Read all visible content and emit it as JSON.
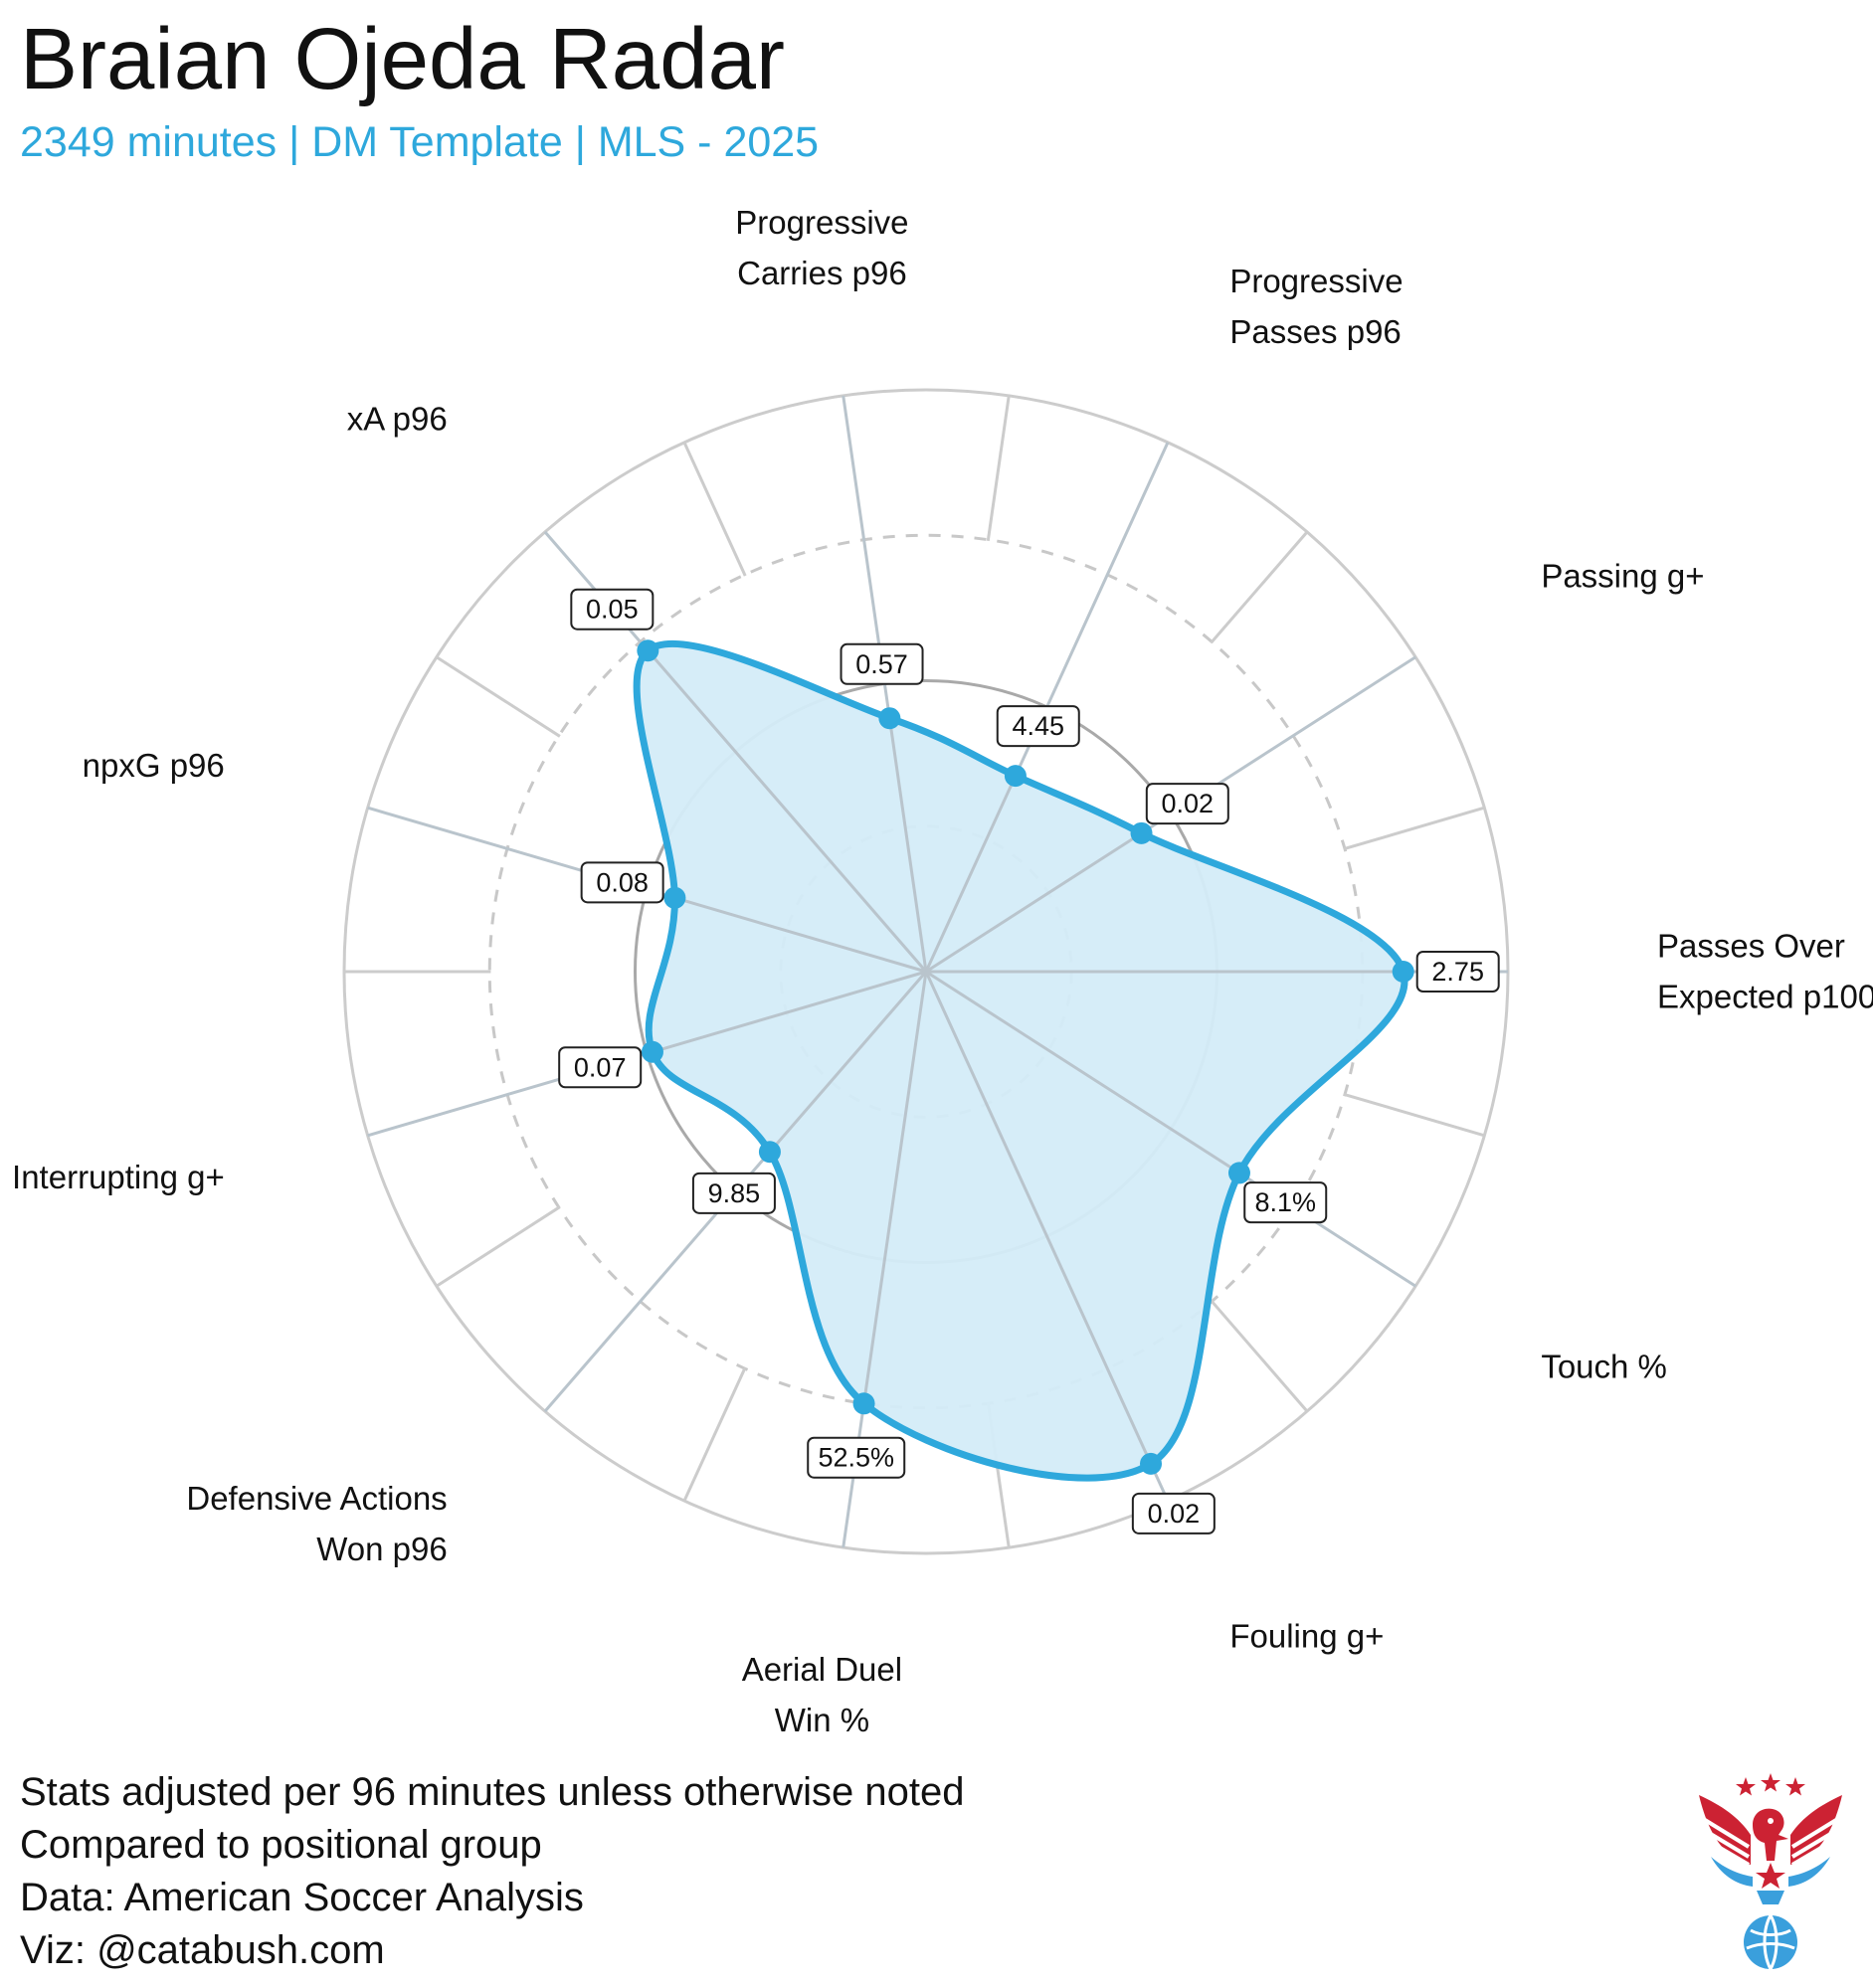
{
  "title": "Braian Ojeda Radar",
  "subtitle": "2349 minutes | DM Template | MLS - 2025",
  "notes": [
    "Stats adjusted per 96 minutes unless otherwise noted",
    "Compared to positional group",
    "Data: American Soccer Analysis",
    "Viz: @catabush.com"
  ],
  "colors": {
    "accent": "#2ea8dc",
    "fill": "#d4ecf8",
    "grid": "#cccccc",
    "logo_red": "#cc2233",
    "logo_blue": "#3a9fdc"
  },
  "logo": {
    "icon": "eagle-soccer-logo-icon"
  },
  "chart_data": {
    "type": "radar",
    "scale": "percentile",
    "rlim": [
      0,
      100
    ],
    "rings": [
      25,
      50,
      75,
      100
    ],
    "categories": [
      [
        "Passes Over",
        "Expected p100"
      ],
      [
        "Passing g+"
      ],
      [
        "Progressive",
        "Passes p96"
      ],
      [
        "Progressive",
        "Carries p96"
      ],
      [
        "xA p96"
      ],
      [
        "npxG p96"
      ],
      [
        "Interrupting g+"
      ],
      [
        "Defensive Actions",
        "Won p96"
      ],
      [
        "Aerial Duel",
        "Win %"
      ],
      [
        "Fouling g+"
      ],
      [
        "Touch %"
      ]
    ],
    "value_labels": [
      "2.75",
      "0.02",
      "4.45",
      "0.57",
      "0.05",
      "0.08",
      "0.07",
      "9.85",
      "52.5%",
      "0.02",
      "8.1%"
    ],
    "percentiles": [
      82,
      44,
      37,
      44,
      73,
      45,
      49,
      41,
      75,
      93,
      64
    ]
  }
}
